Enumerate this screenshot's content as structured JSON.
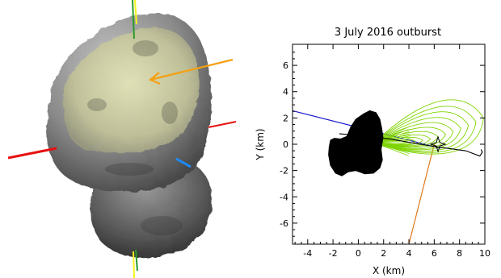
{
  "figure": {
    "title": "3 July 2016 outburst",
    "xlabel": "X (km)",
    "ylabel": "Y (km)"
  },
  "colors": {
    "jet_model": "#7fd400",
    "sun_direction": "#1a1acc",
    "observer_direction": "#e07a1a",
    "trajectory": "#000000",
    "nucleus": "#000000",
    "axis_x_marker": "#e81010",
    "axis_y_marker": "#1a8cff",
    "axis_z_marker_green": "#2a9a2a",
    "axis_z_marker_yellow": "#f5f520",
    "arrow_marker": "#f5a010",
    "source_region": "#d8d8a0"
  },
  "model_view": {
    "markers": [
      "red-axis-marker",
      "green-yellow-spin-axis",
      "blue-axis-marker",
      "orange-arrow"
    ]
  },
  "chart_data": {
    "type": "line",
    "title": "3 July 2016 outburst",
    "xlabel": "X (km)",
    "ylabel": "Y (km)",
    "xlim": [
      -5.2,
      10
    ],
    "ylim": [
      -7.6,
      7.6
    ],
    "xticks": [
      -4,
      -2,
      0,
      2,
      4,
      6,
      8,
      10
    ],
    "yticks": [
      -6,
      -4,
      -2,
      0,
      2,
      4,
      6
    ],
    "grid": false,
    "lines": [
      {
        "id": "blue-line",
        "points": [
          [
            -5.2,
            2.55
          ],
          [
            6.5,
            -0.3
          ]
        ]
      },
      {
        "id": "orange-line",
        "points": [
          [
            6.0,
            0.0
          ],
          [
            4.0,
            -7.6
          ]
        ]
      },
      {
        "id": "trajectory",
        "points": [
          [
            -1.5,
            0.8
          ],
          [
            2.5,
            0.4
          ],
          [
            5.5,
            -0.1
          ],
          [
            7.0,
            -0.3
          ],
          [
            8.5,
            -0.5
          ],
          [
            9.6,
            -0.9
          ],
          [
            9.8,
            -0.6
          ],
          [
            9.7,
            -0.4
          ]
        ]
      }
    ],
    "jet_origin": [
      1.3,
      0.1
    ],
    "jet_apex": [
      6.3,
      0.45
    ],
    "jet_lobes": [
      {
        "tip": [
          9.9,
          2.0
        ],
        "width": 2.7
      },
      {
        "tip": [
          9.3,
          1.7
        ],
        "width": 2.3
      },
      {
        "tip": [
          8.7,
          1.45
        ],
        "width": 1.95
      },
      {
        "tip": [
          8.1,
          1.2
        ],
        "width": 1.6
      },
      {
        "tip": [
          7.5,
          0.95
        ],
        "width": 1.3
      },
      {
        "tip": [
          6.9,
          0.75
        ],
        "width": 1.0
      },
      {
        "tip": [
          6.3,
          0.55
        ],
        "width": 0.75
      },
      {
        "tip": [
          5.7,
          0.4
        ],
        "width": 0.55
      },
      {
        "tip": [
          5.1,
          0.3
        ],
        "width": 0.4
      },
      {
        "tip": [
          4.5,
          0.22
        ],
        "width": 0.28
      },
      {
        "tip": [
          3.9,
          0.16
        ],
        "width": 0.18
      }
    ],
    "source_star": [
      6.3,
      0.0
    ],
    "nucleus_outline": [
      [
        -2.2,
        0.3
      ],
      [
        -1.9,
        0.45
      ],
      [
        -1.4,
        0.4
      ],
      [
        -0.9,
        0.6
      ],
      [
        -0.6,
        1.3
      ],
      [
        -0.2,
        1.9
      ],
      [
        0.4,
        2.3
      ],
      [
        0.9,
        2.55
      ],
      [
        1.4,
        2.4
      ],
      [
        1.7,
        1.9
      ],
      [
        1.85,
        1.2
      ],
      [
        1.95,
        0.5
      ],
      [
        1.8,
        -0.4
      ],
      [
        1.9,
        -1.2
      ],
      [
        1.7,
        -1.8
      ],
      [
        1.2,
        -2.2
      ],
      [
        0.5,
        -2.25
      ],
      [
        -0.2,
        -2.0
      ],
      [
        -0.8,
        -2.1
      ],
      [
        -1.3,
        -2.4
      ],
      [
        -1.8,
        -2.2
      ],
      [
        -2.2,
        -1.6
      ],
      [
        -2.35,
        -0.8
      ],
      [
        -2.3,
        -0.2
      ]
    ]
  }
}
